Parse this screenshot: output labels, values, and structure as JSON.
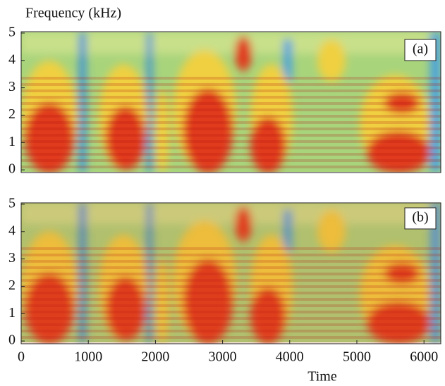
{
  "chart_data": [
    {
      "type": "spectrogram",
      "ylabel": "Frequency (kHz)",
      "panel_label": "(a)",
      "xlim": [
        0,
        6250
      ],
      "ylim": [
        -0.1,
        5.05
      ],
      "yticks": [
        0,
        1,
        2,
        3,
        4,
        5
      ]
    },
    {
      "type": "spectrogram",
      "panel_label": "(b)",
      "xlabel": "Time",
      "xlim": [
        0,
        6250
      ],
      "ylim": [
        -0.1,
        5.05
      ],
      "yticks": [
        0,
        1,
        2,
        3,
        4,
        5
      ],
      "xticks": [
        0,
        1000,
        2000,
        3000,
        4000,
        5000,
        6000
      ]
    }
  ]
}
